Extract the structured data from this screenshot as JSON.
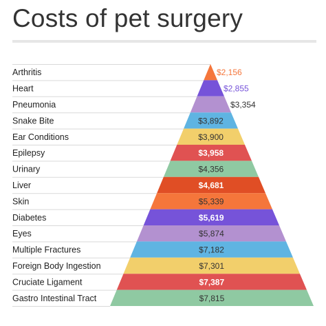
{
  "title": "Costs of pet surgery",
  "chart_data": {
    "type": "bar",
    "style": "pyramid",
    "title": "Costs of pet surgery",
    "categories": [
      "Arthritis",
      "Heart",
      "Pneumonia",
      "Snake Bite",
      "Ear Conditions",
      "Epilepsy",
      "Urinary",
      "Liver",
      "Skin",
      "Diabetes",
      "Eyes",
      "Multiple Fractures",
      "Foreign Body Ingestion",
      "Cruciate Ligament",
      "Gastro Intestinal Tract"
    ],
    "values": [
      2156,
      2855,
      3354,
      3892,
      3900,
      3958,
      4356,
      4681,
      5339,
      5619,
      5874,
      7182,
      7301,
      7387,
      7815
    ],
    "value_labels": [
      "$2,156",
      "$2,855",
      "$3,354",
      "$3,892",
      "$3,900",
      "$3,958",
      "$4,356",
      "$4,681",
      "$5,339",
      "$5,619",
      "$5,874",
      "$7,182",
      "$7,301",
      "$7,387",
      "$7,815"
    ],
    "colors": [
      "#f5763b",
      "#7653d9",
      "#b391d0",
      "#5fb4e2",
      "#f2cf6b",
      "#e05252",
      "#8fc9a2",
      "#e04e25",
      "#f5763b",
      "#7653d9",
      "#b391d0",
      "#5fb4e2",
      "#f2cf6b",
      "#e05252",
      "#8fc9a2"
    ],
    "label_colors": [
      "#f5763b",
      "#7653d9",
      "#333333",
      "#333333",
      "#333333",
      "#ffffff",
      "#333333",
      "#ffffff",
      "#333333",
      "#ffffff",
      "#333333",
      "#333333",
      "#333333",
      "#ffffff",
      "#333333"
    ],
    "grid": false,
    "legend": "none"
  }
}
